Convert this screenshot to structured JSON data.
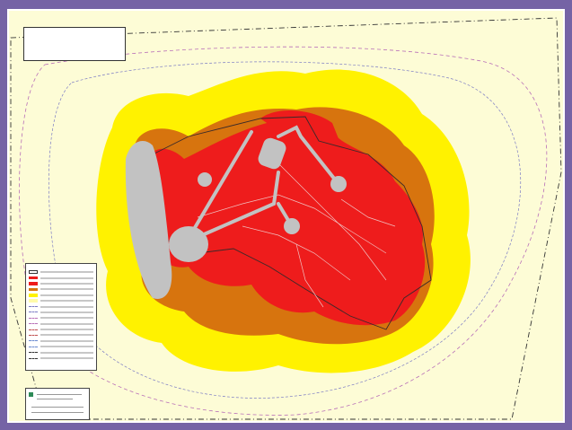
{
  "title_block": {
    "line1": "",
    "line2": ""
  },
  "legend": {
    "title": "",
    "items": [
      {
        "swatch": "outline",
        "color": "#333333"
      },
      {
        "swatch": "fill",
        "color": "#ee1c1c"
      },
      {
        "swatch": "fill",
        "color": "#ee1c1c"
      },
      {
        "swatch": "fill",
        "color": "#d7740e"
      },
      {
        "swatch": "fill",
        "color": "#fff200"
      },
      {
        "swatch": "fill",
        "color": "#fffbaa"
      },
      {
        "swatch": "dash",
        "color": "#7c7cc4"
      },
      {
        "swatch": "dash",
        "color": "#7c7cc4"
      },
      {
        "swatch": "dash",
        "color": "#b86fb8"
      },
      {
        "swatch": "dash",
        "color": "#b86fb8"
      },
      {
        "swatch": "dash",
        "color": "#c05050"
      },
      {
        "swatch": "dash",
        "color": "#c05050"
      },
      {
        "swatch": "dash",
        "color": "#6a8ad0"
      },
      {
        "swatch": "dash",
        "color": "#6a8ad0"
      },
      {
        "swatch": "dash",
        "color": "#333333"
      },
      {
        "swatch": "dash",
        "color": "#333333"
      }
    ]
  },
  "colors": {
    "page_border": "#7563a5",
    "map_background": "#fdfcd6",
    "zone_outer": "#fff200",
    "zone_middle": "#d7740e",
    "zone_inner": "#ee1c1c",
    "facilities": "#c2c2c2",
    "buffer_line_blue": "#7c7cc4",
    "buffer_line_pink": "#b86fb8"
  }
}
